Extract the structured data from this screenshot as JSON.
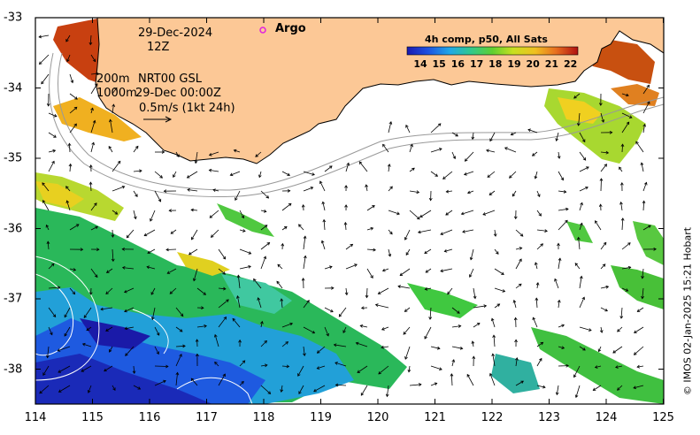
{
  "map": {
    "date": "29-Dec-2024",
    "hour": "12Z",
    "line_200m": "200m",
    "line_1000m": "1000m",
    "product_a": "NRT00 GSL",
    "product_b": "29-Dec 00:00Z",
    "scale_text": "0.5m/s (1kt 24h)",
    "argo_label": "Argo",
    "credit": "© IMOS 02-Jan-2025 15:21 Hobart",
    "colorbar": {
      "title": "4h comp, p50, All Sats",
      "ticks": [
        "14",
        "15",
        "16",
        "17",
        "18",
        "19",
        "20",
        "21",
        "22"
      ]
    },
    "x_ticks": [
      "114",
      "115",
      "116",
      "117",
      "118",
      "119",
      "120",
      "121",
      "122",
      "123",
      "124",
      "125"
    ],
    "y_ticks": [
      "-33",
      "-34",
      "-35",
      "-36",
      "-37",
      "-38"
    ],
    "colors": {
      "land": "#fcc896",
      "argo": "#e020e0"
    }
  }
}
